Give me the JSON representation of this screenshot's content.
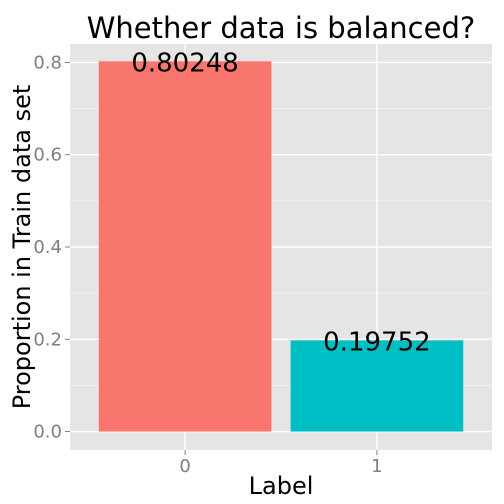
{
  "chart_data": {
    "type": "bar",
    "title": "Whether data is balanced?",
    "xlabel": "Label",
    "ylabel": "Proportion in Train data set",
    "categories": [
      "0",
      "1"
    ],
    "values": [
      0.80248,
      0.19752
    ],
    "data_labels": [
      "0.80248",
      "0.19752"
    ],
    "colors": [
      "#F8766D",
      "#00BFC4"
    ],
    "ylim": [
      -0.04,
      0.84
    ],
    "y_ticks": [
      0.0,
      0.2,
      0.4,
      0.6,
      0.8
    ],
    "y_tick_labels": [
      "0.0",
      "0.2",
      "0.4",
      "0.6",
      "0.8"
    ],
    "grid": true,
    "legend": "none",
    "panel_background": "#E5E5E5",
    "grid_color": "#FFFFFF"
  }
}
